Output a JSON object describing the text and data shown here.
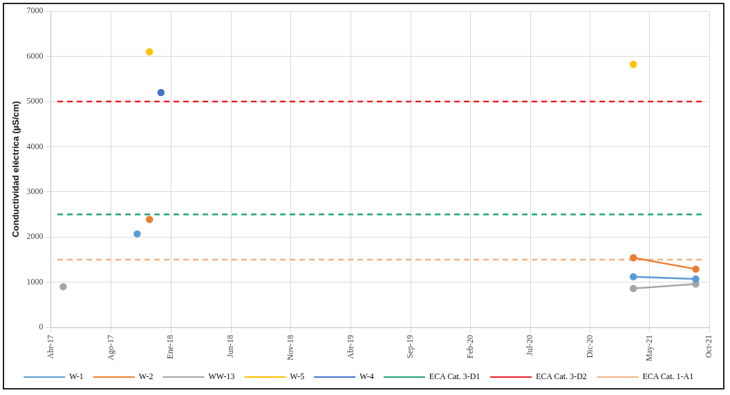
{
  "chart_data": {
    "type": "line",
    "ylabel": "Conductividad eléctrica (µS/cm)",
    "xlim": [
      "2017-04-01",
      "2021-10-13"
    ],
    "xticks": [
      {
        "value": "2017-04-01",
        "label": "Abr-17"
      },
      {
        "value": "2017-08-30",
        "label": "Ago-17"
      },
      {
        "value": "2018-01-28",
        "label": "Ene-18"
      },
      {
        "value": "2018-06-28",
        "label": "Jun-18"
      },
      {
        "value": "2018-11-26",
        "label": "Nov-18"
      },
      {
        "value": "2019-04-26",
        "label": "Abr-19"
      },
      {
        "value": "2019-09-23",
        "label": "Sep-19"
      },
      {
        "value": "2020-02-21",
        "label": "Feb-20"
      },
      {
        "value": "2020-07-20",
        "label": "Jul-20"
      },
      {
        "value": "2020-12-17",
        "label": "Dic-20"
      },
      {
        "value": "2021-05-16",
        "label": "May-21"
      },
      {
        "value": "2021-10-13",
        "label": "Oct-21"
      }
    ],
    "ylim": [
      0,
      7000
    ],
    "yticks": [
      0,
      1000,
      2000,
      3000,
      4000,
      5000,
      6000,
      7000
    ],
    "series": [
      {
        "name": "W-1",
        "color": "#5b9bd5",
        "x": [
          "2017-11-04",
          "2019-06-01",
          "2021-04-05",
          "2021-09-09"
        ],
        "values": [
          2070,
          null,
          1120,
          1070
        ]
      },
      {
        "name": "W-2",
        "color": "#ed7d31",
        "x": [
          "2017-12-05",
          "2019-06-01",
          "2021-04-05",
          "2021-09-09"
        ],
        "values": [
          2390,
          null,
          1540,
          1290
        ]
      },
      {
        "name": "WW-13",
        "color": "#a5a5a5",
        "x": [
          "2017-05-02",
          "2019-06-01",
          "2021-04-05",
          "2021-09-09"
        ],
        "values": [
          900,
          null,
          860,
          960
        ]
      },
      {
        "name": "W-5",
        "type": "scatter",
        "color": "#ffc000",
        "x": [
          "2017-12-05",
          "2021-04-05"
        ],
        "values": [
          6100,
          5820
        ]
      },
      {
        "name": "W-4",
        "type": "scatter",
        "color": "#4472c4",
        "x": [
          "2018-01-03"
        ],
        "values": [
          5200
        ]
      }
    ],
    "ref_lines": [
      {
        "axis": "y",
        "value": 2500,
        "label": "ECA Cat. 3-D1",
        "color": "#1fa37a",
        "line_style": "dashed"
      },
      {
        "axis": "y",
        "value": 5000,
        "label": "ECA Cat. 3-D2",
        "color": "#e8202a",
        "line_style": "dashed"
      },
      {
        "axis": "y",
        "value": 1500,
        "label": "ECA Cat. 1-A1",
        "color": "#f4b183",
        "line_style": "dashed"
      }
    ],
    "grid": true,
    "legend": "bottom",
    "marker": "circle",
    "line_style": "solid"
  }
}
